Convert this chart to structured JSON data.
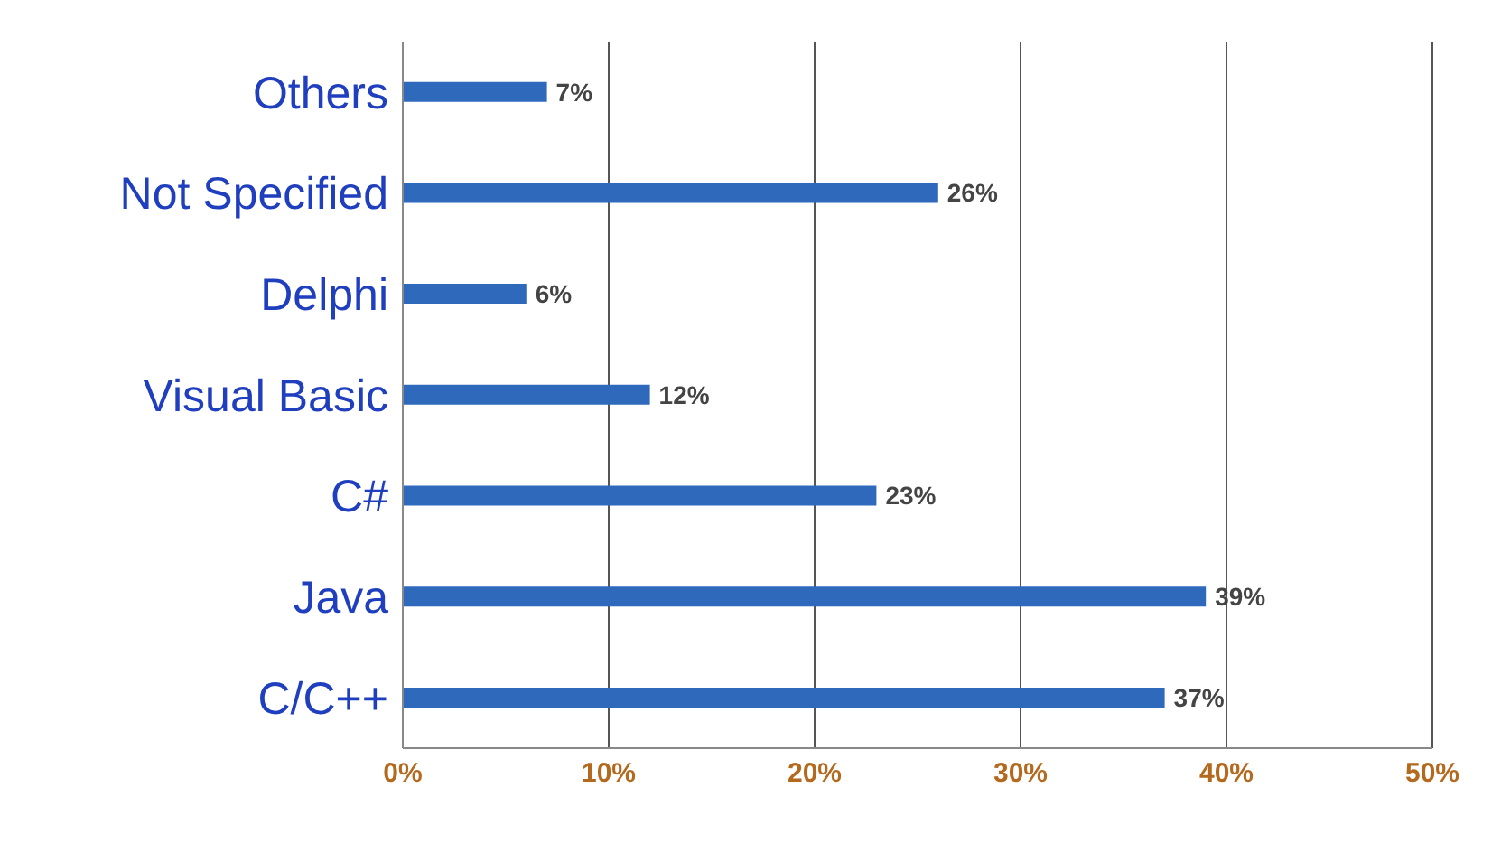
{
  "chart_data": {
    "type": "bar",
    "orientation": "horizontal",
    "categories": [
      "Others",
      "Not Specified",
      "Delphi",
      "Visual Basic",
      "C#",
      "Java",
      "C/C++"
    ],
    "values": [
      7,
      26,
      6,
      12,
      23,
      39,
      37
    ],
    "value_labels": [
      "7%",
      "26%",
      "6%",
      "12%",
      "23%",
      "39%",
      "37%"
    ],
    "color": "#2e69bb",
    "xlim": [
      0,
      50
    ],
    "xticks": [
      {
        "value": 0,
        "label": "0%"
      },
      {
        "value": 10,
        "label": "10%"
      },
      {
        "value": 20,
        "label": "20%"
      },
      {
        "value": 30,
        "label": "30%"
      },
      {
        "value": 40,
        "label": "40%"
      },
      {
        "value": 50,
        "label": "50%"
      }
    ],
    "grid": "x",
    "legend": false
  }
}
